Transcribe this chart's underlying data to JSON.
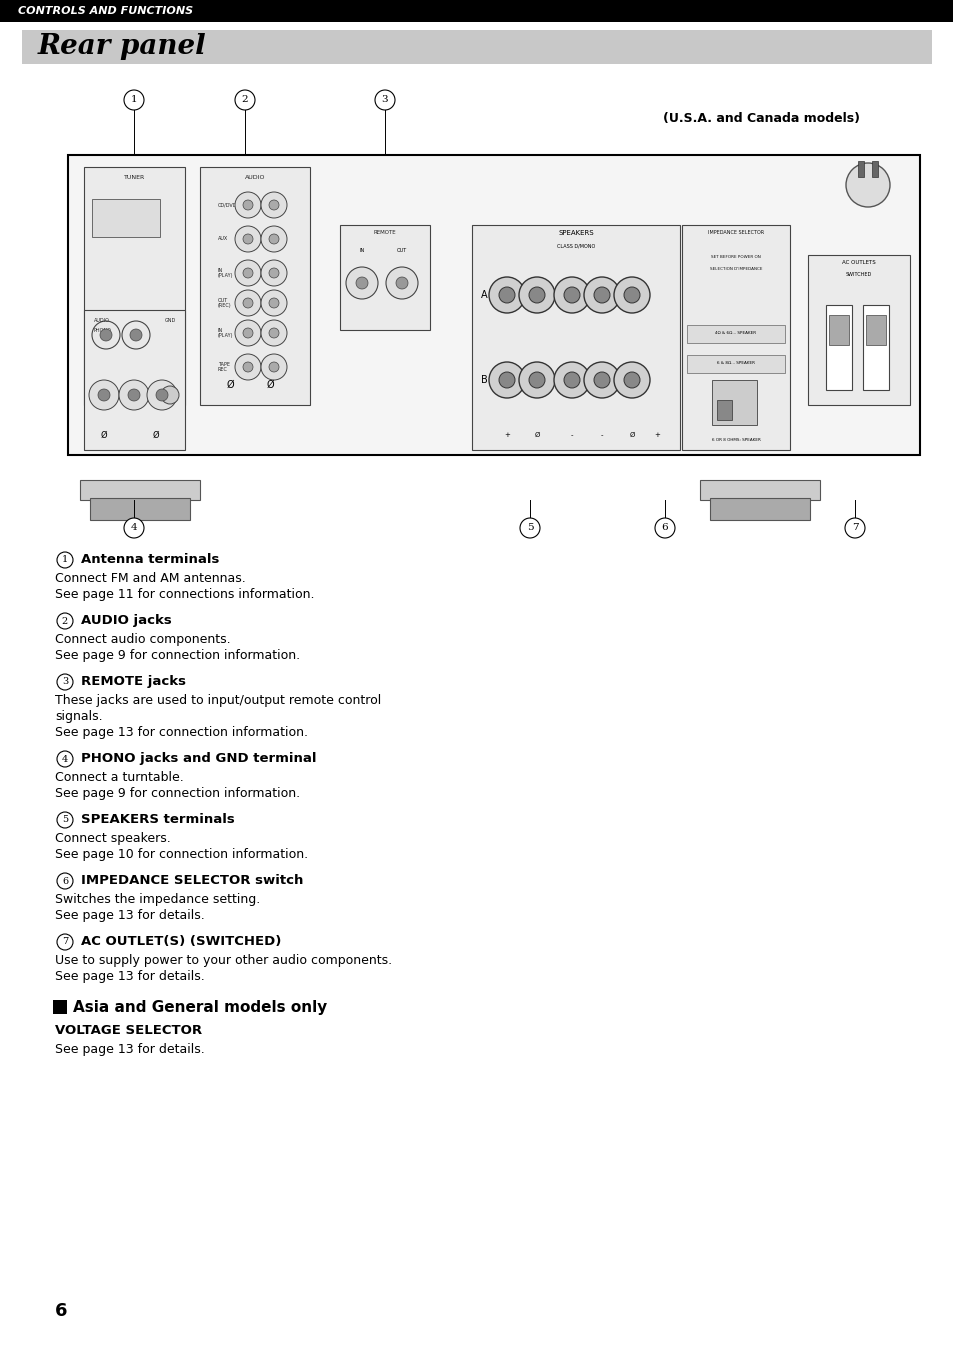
{
  "header_bar_color": "#000000",
  "header_text": "CONTROLS AND FUNCTIONS",
  "header_text_color": "#ffffff",
  "header_font_size": 8,
  "section_title": "Rear panel",
  "section_title_bg": "#c8c8c8",
  "section_title_font_size": 20,
  "page_bg": "#ffffff",
  "usa_canada_label": "(U.S.A. and Canada models)",
  "items": [
    {
      "number": "1",
      "title": "Antenna terminals",
      "lines": [
        "Connect FM and AM antennas.",
        "See page 11 for connections information."
      ]
    },
    {
      "number": "2",
      "title": "AUDIO jacks",
      "lines": [
        "Connect audio components.",
        "See page 9 for connection information."
      ]
    },
    {
      "number": "3",
      "title": "REMOTE jacks",
      "lines": [
        "These jacks are used to input/output remote control",
        "signals.",
        "See page 13 for connection information."
      ]
    },
    {
      "number": "4",
      "title": "PHONO jacks and GND terminal",
      "lines": [
        "Connect a turntable.",
        "See page 9 for connection information."
      ]
    },
    {
      "number": "5",
      "title": "SPEAKERS terminals",
      "lines": [
        "Connect speakers.",
        "See page 10 for connection information."
      ]
    },
    {
      "number": "6",
      "title": "IMPEDANCE SELECTOR switch",
      "lines": [
        "Switches the impedance setting.",
        "See page 13 for details."
      ]
    },
    {
      "number": "7",
      "title": "AC OUTLET(S) (SWITCHED)",
      "lines": [
        "Use to supply power to your other audio components.",
        "See page 13 for details."
      ]
    }
  ],
  "asia_section_title": "Asia and General models only",
  "voltage_title": "VOLTAGE SELECTOR",
  "voltage_text": "See page 13 for details.",
  "page_number": "6"
}
